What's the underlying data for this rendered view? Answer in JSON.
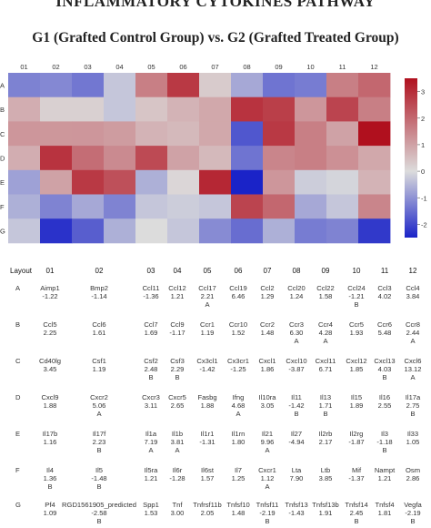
{
  "title": "INFLAMMATORY CYTOKINES PATHWAY",
  "subtitle": "G1 (Grafted Control Group) vs. G2 (Grafted Treated Group)",
  "chart_data": {
    "type": "heatmap",
    "columns": [
      "01",
      "02",
      "03",
      "04",
      "05",
      "06",
      "07",
      "08",
      "09",
      "10",
      "11",
      "12"
    ],
    "rows": [
      "A",
      "B",
      "C",
      "D",
      "E",
      "F",
      "G"
    ],
    "row_labels_visible": [
      "A",
      "B",
      "C",
      "D",
      "E",
      "F",
      "G"
    ],
    "colorbar_ticks": [
      "3",
      "2",
      "1",
      "0",
      "-1",
      "-2"
    ],
    "colorbar_range": [
      -2.5,
      3.5
    ],
    "colors": {
      "low": "#1a23c8",
      "mid": "#dcdcdc",
      "high": "#b0101e"
    },
    "values": [
      [
        -1.22,
        -1.14,
        -1.36,
        -0.3,
        1.6,
        2.8,
        0.3,
        -0.7,
        -1.4,
        -1.3,
        1.6,
        2.0
      ],
      [
        0.8,
        0.2,
        0.2,
        -0.3,
        0.4,
        0.7,
        0.9,
        2.9,
        2.7,
        1.2,
        2.6,
        1.6
      ],
      [
        1.2,
        1.19,
        1.2,
        1.1,
        0.7,
        0.6,
        0.9,
        -1.8,
        2.8,
        1.6,
        1.0,
        3.5
      ],
      [
        0.8,
        2.9,
        1.9,
        1.4,
        2.5,
        1.0,
        0.6,
        -1.4,
        1.5,
        1.6,
        1.3,
        0.9
      ],
      [
        -0.8,
        1.0,
        2.8,
        2.4,
        -0.6,
        0.1,
        3.1,
        -2.6,
        1.2,
        -0.2,
        -0.1,
        0.7
      ],
      [
        -0.6,
        -1.2,
        -0.7,
        -1.2,
        -0.3,
        -0.2,
        -0.3,
        2.6,
        2.0,
        -0.7,
        -0.3,
        1.5
      ],
      [
        -0.3,
        -2.3,
        -1.7,
        -0.6,
        0.0,
        -0.3,
        -1.1,
        -1.5,
        -0.6,
        -1.3,
        -1.2,
        -2.2
      ]
    ]
  },
  "table": {
    "header": [
      "Layout",
      "01",
      "02",
      "03",
      "04",
      "05",
      "06",
      "07",
      "08",
      "09",
      "10",
      "11",
      "12"
    ],
    "rows": [
      {
        "row": "A",
        "cells": [
          {
            "gene": "Aimp1",
            "value": "-1.22",
            "flag": ""
          },
          {
            "gene": "Bmp2",
            "value": "-1.14",
            "flag": ""
          },
          {
            "gene": "Ccl11",
            "value": "-1.36",
            "flag": ""
          },
          {
            "gene": "Ccl12",
            "value": "1.21",
            "flag": ""
          },
          {
            "gene": "Ccl17",
            "value": "2.21",
            "flag": "A"
          },
          {
            "gene": "Ccl19",
            "value": "6.46",
            "flag": ""
          },
          {
            "gene": "Ccl2",
            "value": "1.29",
            "flag": ""
          },
          {
            "gene": "Ccl20",
            "value": "1.24",
            "flag": ""
          },
          {
            "gene": "Ccl22",
            "value": "1.58",
            "flag": ""
          },
          {
            "gene": "Ccl24",
            "value": "-1.21",
            "flag": "B"
          },
          {
            "gene": "Ccl3",
            "value": "4.02",
            "flag": ""
          },
          {
            "gene": "Ccl4",
            "value": "3.84",
            "flag": ""
          }
        ]
      },
      {
        "row": "B",
        "cells": [
          {
            "gene": "Ccl5",
            "value": "2.25",
            "flag": ""
          },
          {
            "gene": "Ccl6",
            "value": "1.61",
            "flag": ""
          },
          {
            "gene": "Ccl7",
            "value": "1.69",
            "flag": ""
          },
          {
            "gene": "Ccl9",
            "value": "-1.17",
            "flag": ""
          },
          {
            "gene": "Ccr1",
            "value": "1.19",
            "flag": ""
          },
          {
            "gene": "Ccr10",
            "value": "1.52",
            "flag": ""
          },
          {
            "gene": "Ccr2",
            "value": "1.48",
            "flag": ""
          },
          {
            "gene": "Ccr3",
            "value": "6.30",
            "flag": "A"
          },
          {
            "gene": "Ccr4",
            "value": "4.28",
            "flag": "A"
          },
          {
            "gene": "Ccr5",
            "value": "1.93",
            "flag": ""
          },
          {
            "gene": "Ccr6",
            "value": "5.48",
            "flag": ""
          },
          {
            "gene": "Ccr8",
            "value": "2.44",
            "flag": "A"
          }
        ]
      },
      {
        "row": "C",
        "cells": [
          {
            "gene": "Cd40lg",
            "value": "3.45",
            "flag": ""
          },
          {
            "gene": "Csf1",
            "value": "1.19",
            "flag": ""
          },
          {
            "gene": "Csf2",
            "value": "2.48",
            "flag": "B"
          },
          {
            "gene": "Csf3",
            "value": "2.29",
            "flag": "B"
          },
          {
            "gene": "Cx3cl1",
            "value": "-1.42",
            "flag": ""
          },
          {
            "gene": "Cx3cr1",
            "value": "-1.25",
            "flag": ""
          },
          {
            "gene": "Cxcl1",
            "value": "1.86",
            "flag": ""
          },
          {
            "gene": "Cxcl10",
            "value": "-3.87",
            "flag": ""
          },
          {
            "gene": "Cxcl11",
            "value": "6.71",
            "flag": ""
          },
          {
            "gene": "Cxcl12",
            "value": "1.85",
            "flag": ""
          },
          {
            "gene": "Cxcl13",
            "value": "4.03",
            "flag": "B"
          },
          {
            "gene": "Cxcl6",
            "value": "13.12",
            "flag": "A"
          }
        ]
      },
      {
        "row": "D",
        "cells": [
          {
            "gene": "Cxcl9",
            "value": "1.88",
            "flag": ""
          },
          {
            "gene": "Cxcr2",
            "value": "5.06",
            "flag": "A"
          },
          {
            "gene": "Cxcr3",
            "value": "3.11",
            "flag": ""
          },
          {
            "gene": "Cxcr5",
            "value": "2.65",
            "flag": ""
          },
          {
            "gene": "Fasbg",
            "value": "1.88",
            "flag": ""
          },
          {
            "gene": "Ifng",
            "value": "4.68",
            "flag": "A"
          },
          {
            "gene": "Il10ra",
            "value": "3.05",
            "flag": ""
          },
          {
            "gene": "Il11",
            "value": "-1.42",
            "flag": "B"
          },
          {
            "gene": "Il13",
            "value": "1.71",
            "flag": "B"
          },
          {
            "gene": "Il15",
            "value": "1.89",
            "flag": ""
          },
          {
            "gene": "Il16",
            "value": "2.55",
            "flag": ""
          },
          {
            "gene": "Il17a",
            "value": "2.75",
            "flag": "B"
          }
        ]
      },
      {
        "row": "E",
        "cells": [
          {
            "gene": "Il17b",
            "value": "1.16",
            "flag": ""
          },
          {
            "gene": "Il17f",
            "value": "2.23",
            "flag": "B"
          },
          {
            "gene": "Il1a",
            "value": "7.19",
            "flag": "A"
          },
          {
            "gene": "Il1b",
            "value": "3.81",
            "flag": "A"
          },
          {
            "gene": "Il1r1",
            "value": "-1.31",
            "flag": ""
          },
          {
            "gene": "Il1rn",
            "value": "1.80",
            "flag": ""
          },
          {
            "gene": "Il21",
            "value": "9.96",
            "flag": "A"
          },
          {
            "gene": "Il27",
            "value": "-4.94",
            "flag": ""
          },
          {
            "gene": "Il2rb",
            "value": "2.17",
            "flag": ""
          },
          {
            "gene": "Il2rg",
            "value": "-1.87",
            "flag": ""
          },
          {
            "gene": "Il3",
            "value": "-1.18",
            "flag": "B"
          },
          {
            "gene": "Il33",
            "value": "1.05",
            "flag": ""
          }
        ]
      },
      {
        "row": "F",
        "cells": [
          {
            "gene": "Il4",
            "value": "1.36",
            "flag": "B"
          },
          {
            "gene": "Il5",
            "value": "-1.48",
            "flag": "B"
          },
          {
            "gene": "Il5ra",
            "value": "1.21",
            "flag": ""
          },
          {
            "gene": "Il6r",
            "value": "-1.28",
            "flag": ""
          },
          {
            "gene": "Il6st",
            "value": "1.57",
            "flag": ""
          },
          {
            "gene": "Il7",
            "value": "1.25",
            "flag": ""
          },
          {
            "gene": "Cxcr1",
            "value": "1.12",
            "flag": "A"
          },
          {
            "gene": "Lta",
            "value": "7.90",
            "flag": ""
          },
          {
            "gene": "Ltb",
            "value": "3.85",
            "flag": ""
          },
          {
            "gene": "Mif",
            "value": "-1.37",
            "flag": ""
          },
          {
            "gene": "Nampt",
            "value": "1.21",
            "flag": ""
          },
          {
            "gene": "Osm",
            "value": "2.86",
            "flag": ""
          }
        ]
      },
      {
        "row": "G",
        "cells": [
          {
            "gene": "Pf4",
            "value": "1.09",
            "flag": ""
          },
          {
            "gene": "RGD1561905_predicted",
            "value": "-2.58",
            "flag": "B"
          },
          {
            "gene": "Spp1",
            "value": "1.53",
            "flag": ""
          },
          {
            "gene": "Tnf",
            "value": "3.00",
            "flag": ""
          },
          {
            "gene": "Tnfrsf11b",
            "value": "2.05",
            "flag": ""
          },
          {
            "gene": "Tnfsf10",
            "value": "1.48",
            "flag": ""
          },
          {
            "gene": "Tnfsf11",
            "value": "-2.19",
            "flag": "B"
          },
          {
            "gene": "Tnfsf13",
            "value": "-1.43",
            "flag": ""
          },
          {
            "gene": "Tnfsf13b",
            "value": "1.91",
            "flag": ""
          },
          {
            "gene": "Tnfsf14",
            "value": "2.45",
            "flag": "B"
          },
          {
            "gene": "Tnfsf4",
            "value": "1.81",
            "flag": ""
          },
          {
            "gene": "Vegfa",
            "value": "-2.19",
            "flag": "B"
          }
        ]
      }
    ]
  }
}
